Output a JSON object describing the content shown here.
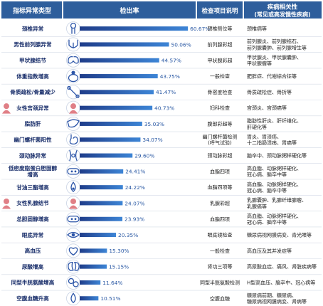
{
  "chart_data": {
    "type": "bar",
    "orientation": "horizontal",
    "headers": {
      "indicator": "指标异常类型",
      "rate": "检出率",
      "item": "检查项目说明",
      "disease_l1": "疾病相关性",
      "disease_l2": "(常见或高发慢性疾病)"
    },
    "unit": "%",
    "xlim": [
      0,
      65
    ],
    "colors": {
      "header_bg": "#2e5e9c",
      "header_text": "#ffffff",
      "bar_start": "#1f3d8a",
      "bar_end": "#3d85d6",
      "value_text": "#2857a3",
      "label_text": "#1a2f6b",
      "row_line": "#d4dbe6",
      "icon_blue": "#2c55a8",
      "icon_pink": "#e07f86"
    },
    "rows": [
      {
        "label_lines": [
          "颈椎异常"
        ],
        "value": 60.67,
        "value_label": "60.67%",
        "item_lines": [
          "颈椎侧位等"
        ],
        "disease_lines": [
          "颈椎病等"
        ],
        "icon": "neck-icon",
        "icon_color": "blue"
      },
      {
        "label_lines": [
          "男性前列腺异常"
        ],
        "value": 50.06,
        "value_label": "50.06%",
        "item_lines": [
          "前列腺彩超"
        ],
        "disease_lines": [
          "前列腺炎、前列腺结石、",
          "前列腺囊肿、前列腺增生等"
        ],
        "icon": "prostate-icon",
        "icon_color": "blue"
      },
      {
        "label_lines": [
          "甲状腺结节"
        ],
        "value": 44.57,
        "value_label": "44.57%",
        "item_lines": [
          "甲状腺彩超"
        ],
        "disease_lines": [
          "甲状腺炎、甲状腺囊肿、",
          "甲状腺瘤等"
        ],
        "icon": "thyroid-icon",
        "icon_color": "blue"
      },
      {
        "label_lines": [
          "体重指数增高"
        ],
        "value": 43.75,
        "value_label": "43.75%",
        "item_lines": [
          "一般检查"
        ],
        "disease_lines": [
          "肥胖症、代谢综合征等"
        ],
        "icon": "body-weight-icon",
        "icon_color": "blue"
      },
      {
        "label_lines": [
          "骨质疏松/骨量减少"
        ],
        "value": 41.47,
        "value_label": "41.47%",
        "item_lines": [
          "骨密度检查"
        ],
        "disease_lines": [
          "骨质疏松症、骨折等"
        ],
        "icon": "bone-joint-icon",
        "icon_color": "blue"
      },
      {
        "label_lines": [
          "女性宫颈异常"
        ],
        "value": 40.73,
        "value_label": "40.73%",
        "item_lines": [
          "妇科检查"
        ],
        "disease_lines": [
          "宫颈炎、宫颈癌等"
        ],
        "icon": "female-icon",
        "icon_color": "pink"
      },
      {
        "label_lines": [
          "脂肪肝"
        ],
        "value": 35.03,
        "value_label": "35.03%",
        "item_lines": [
          "腹部彩超等"
        ],
        "disease_lines": [
          "脂肪性肝炎、肝纤维化、",
          "肝硬化等"
        ],
        "icon": "liver-icon",
        "icon_color": "blue"
      },
      {
        "label_lines": [
          "幽门螺杆菌阳性"
        ],
        "value": 34.07,
        "value_label": "34.07%",
        "item_lines": [
          "幽门螺杆菌检测",
          "(呼气试验)"
        ],
        "disease_lines": [
          "胃炎、胃溃疡、",
          "十二指肠溃疡、胃癌等"
        ],
        "icon": "stomach-icon",
        "icon_color": "blue"
      },
      {
        "label_lines": [
          "颈动脉异常"
        ],
        "value": 29.6,
        "value_label": "29.60%",
        "item_lines": [
          "颈动脉彩超"
        ],
        "disease_lines": [
          "脑卒中、颈动脉粥样硬化等"
        ],
        "icon": "artery-icon",
        "icon_color": "blue"
      },
      {
        "label_lines": [
          "低密度脂蛋白胆固醇",
          "增高"
        ],
        "value": 24.41,
        "value_label": "24.41%",
        "item_lines": [
          "血脂四项"
        ],
        "disease_lines": [
          "高血脂、动脉粥样硬化、",
          "冠心病、脑卒中等"
        ],
        "icon": "vessel-icon",
        "icon_color": "blue"
      },
      {
        "label_lines": [
          "甘油三酯增高"
        ],
        "value": 24.22,
        "value_label": "24.22%",
        "item_lines": [
          "血脂四项等"
        ],
        "disease_lines": [
          "高血脂、动脉粥样硬化、",
          "冠心病、脑卒中等"
        ],
        "icon": "lipid-drop-icon",
        "icon_color": "blue"
      },
      {
        "label_lines": [
          "女性乳腺结节"
        ],
        "value": 24.07,
        "value_label": "24.07%",
        "item_lines": [
          "乳腺彩超"
        ],
        "disease_lines": [
          "乳腺囊肿、乳腺纤维腺瘤、",
          "乳腺癌等"
        ],
        "icon": "female-icon",
        "icon_color": "pink"
      },
      {
        "label_lines": [
          "总胆固醇增高"
        ],
        "value": 23.93,
        "value_label": "23.93%",
        "item_lines": [
          "血脂四项"
        ],
        "disease_lines": [
          "高血脂、动脉粥样硬化、",
          "冠心病、脑卒中等"
        ],
        "icon": "vessel-icon",
        "icon_color": "blue"
      },
      {
        "label_lines": [
          "眼底异常"
        ],
        "value": 20.35,
        "value_label": "20.35%",
        "item_lines": [
          "眼底镜检查"
        ],
        "disease_lines": [
          "糖尿病视网膜病变、青光眼等"
        ],
        "icon": "eye-icon",
        "icon_color": "blue"
      },
      {
        "label_lines": [
          "高血压"
        ],
        "value": 15.3,
        "value_label": "15.30%",
        "item_lines": [
          "一般检查"
        ],
        "disease_lines": [
          "高血压及其并发症等"
        ],
        "icon": "heart-icon",
        "icon_color": "blue"
      },
      {
        "label_lines": [
          "尿酸增高"
        ],
        "value": 15.15,
        "value_label": "15.15%",
        "item_lines": [
          "肾功三项等"
        ],
        "disease_lines": [
          "高尿酸血症、痛风、肾脏疾病等"
        ],
        "icon": "kidney-icon",
        "icon_color": "blue"
      },
      {
        "label_lines": [
          "同型半胱氨酸增高"
        ],
        "value": 11.64,
        "value_label": "11.64%",
        "item_lines": [
          "同型半胱氨酸检测"
        ],
        "disease_lines": [
          "H型高血压、脑卒中、冠心病等"
        ],
        "icon": "blood-cells-icon",
        "icon_color": "blue"
      },
      {
        "label_lines": [
          "空腹血糖升高"
        ],
        "value": 10.51,
        "value_label": "10.51%",
        "item_lines": [
          "空腹血糖"
        ],
        "disease_lines": [
          "糖尿病前期、糖尿病、",
          "糖尿病视网膜病变、肾病等"
        ],
        "icon": "blood-drop-icon",
        "icon_color": "blue"
      }
    ]
  }
}
